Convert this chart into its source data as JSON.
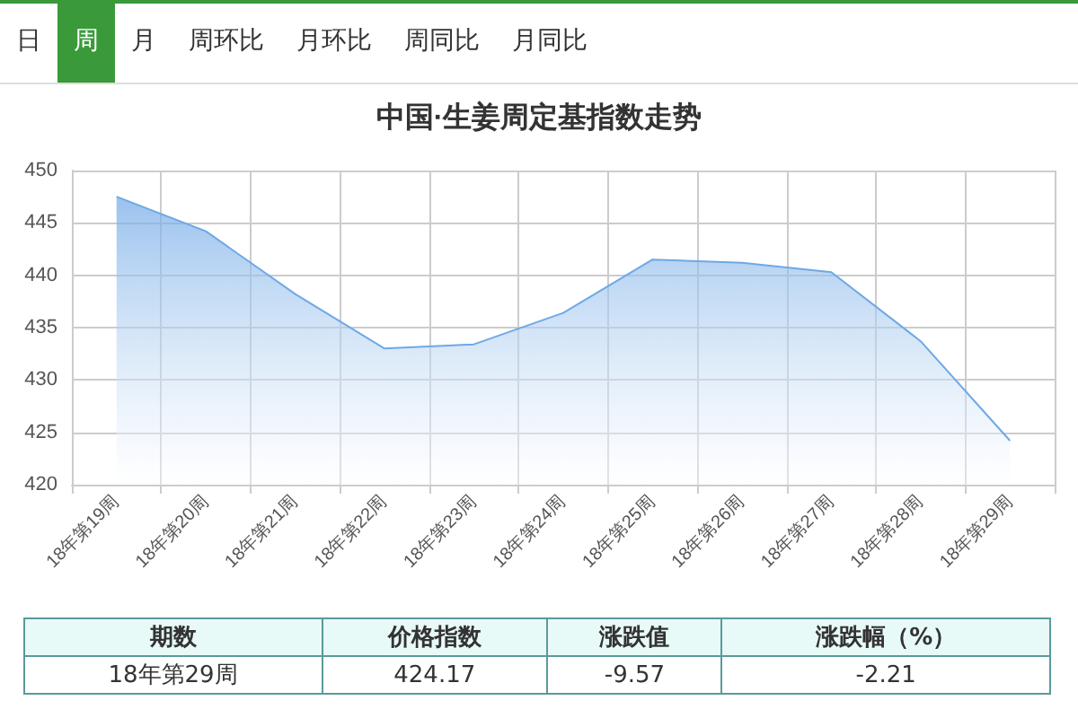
{
  "chart_data": {
    "type": "area",
    "title": "中国·生姜周定基指数走势",
    "categories": [
      "18年第19周",
      "18年第20周",
      "18年第21周",
      "18年第22周",
      "18年第23周",
      "18年第24周",
      "18年第25周",
      "18年第26周",
      "18年第27周",
      "18年第28周",
      "18年第29周"
    ],
    "values": [
      447.5,
      444.2,
      438.2,
      433.0,
      433.4,
      436.4,
      441.5,
      441.2,
      440.3,
      433.7,
      424.2
    ],
    "color": "#6fa8e6",
    "ylim": [
      420,
      450
    ],
    "yticks": [
      420,
      425,
      430,
      435,
      440,
      445,
      450
    ],
    "grid": true,
    "marker": "none",
    "annotations": [
      "日",
      "周",
      "月",
      "周环比",
      "月环比",
      "周同比",
      "月同比",
      "期数",
      "价格指数",
      "涨跌值",
      "涨跌幅（%）",
      "18年第29周",
      "424.17",
      "-9.57",
      "-2.21"
    ]
  }
}
